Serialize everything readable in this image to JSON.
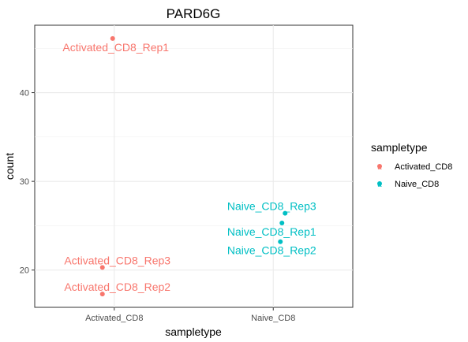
{
  "chart_data": {
    "type": "scatter",
    "title": "PARD6G",
    "xlabel": "sampletype",
    "ylabel": "count",
    "categories": [
      "Activated_CD8",
      "Naive_CD8"
    ],
    "ylim": [
      15.8,
      47.6
    ],
    "yticks": [
      20,
      30,
      40
    ],
    "grid": true,
    "legend": {
      "title": "sampletype",
      "position": "right",
      "entries": [
        {
          "label": "Activated_CD8",
          "color": "#F8766D"
        },
        {
          "label": "Naive_CD8",
          "color": "#00BFC4"
        }
      ]
    },
    "series": [
      {
        "name": "Activated_CD8",
        "color": "#F8766D",
        "points": [
          {
            "x": "Activated_CD8",
            "y": 46.1,
            "label": "Activated_CD8_Rep1"
          },
          {
            "x": "Activated_CD8",
            "y": 20.3,
            "label": "Activated_CD8_Rep3"
          },
          {
            "x": "Activated_CD8",
            "y": 17.3,
            "label": "Activated_CD8_Rep2"
          }
        ]
      },
      {
        "name": "Naive_CD8",
        "color": "#00BFC4",
        "points": [
          {
            "x": "Naive_CD8",
            "y": 26.4,
            "label": "Naive_CD8_Rep3"
          },
          {
            "x": "Naive_CD8",
            "y": 25.3,
            "label": "Naive_CD8_Rep1"
          },
          {
            "x": "Naive_CD8",
            "y": 23.2,
            "label": "Naive_CD8_Rep2"
          }
        ]
      }
    ]
  }
}
